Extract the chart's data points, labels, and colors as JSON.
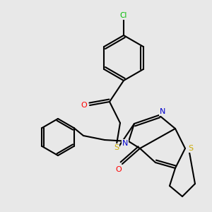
{
  "background_color": "#e8e8e8",
  "atom_colors": {
    "C": "#000000",
    "O": "#ff0000",
    "N": "#0000cc",
    "S": "#ccaa00",
    "Cl": "#00bb00"
  },
  "bond_color": "#000000",
  "bond_width": 1.5,
  "figsize": [
    3.0,
    3.0
  ],
  "dpi": 100
}
